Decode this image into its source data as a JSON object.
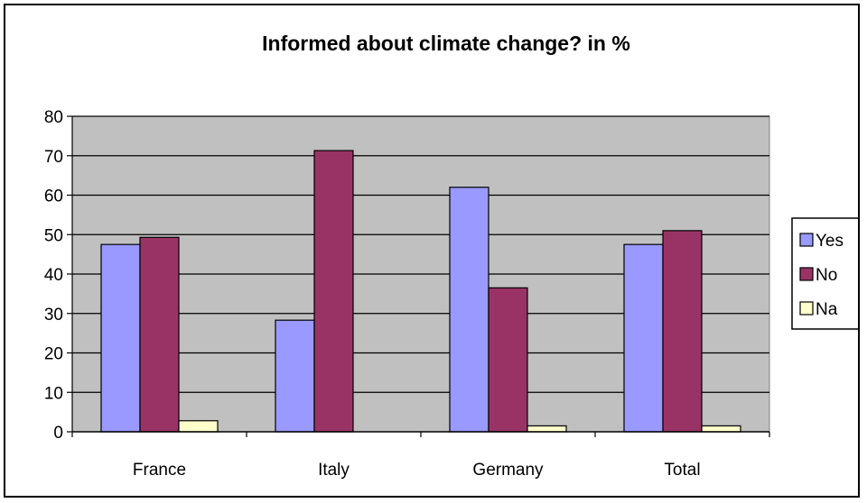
{
  "chart_data": {
    "type": "bar",
    "title": "Informed about climate change? in %",
    "xlabel": "",
    "ylabel": "",
    "categories": [
      "France",
      "Italy",
      "Germany",
      "Total"
    ],
    "series": [
      {
        "name": "Yes",
        "values": [
          47.5,
          28.3,
          62.0,
          47.5
        ]
      },
      {
        "name": "No",
        "values": [
          49.3,
          71.3,
          36.5,
          51.0
        ]
      },
      {
        "name": "Na",
        "values": [
          2.8,
          0,
          1.5,
          1.5
        ]
      }
    ],
    "ylim": [
      0,
      80
    ],
    "yticks": [
      "0",
      "10",
      "20",
      "30",
      "40",
      "50",
      "60",
      "70",
      "80"
    ],
    "grid": true,
    "legend_position": "right",
    "colors": {
      "series": [
        "#9999ff",
        "#993366",
        "#ffffcc"
      ],
      "plot_background": "#c0c0c0",
      "gridline": "#000000"
    }
  }
}
